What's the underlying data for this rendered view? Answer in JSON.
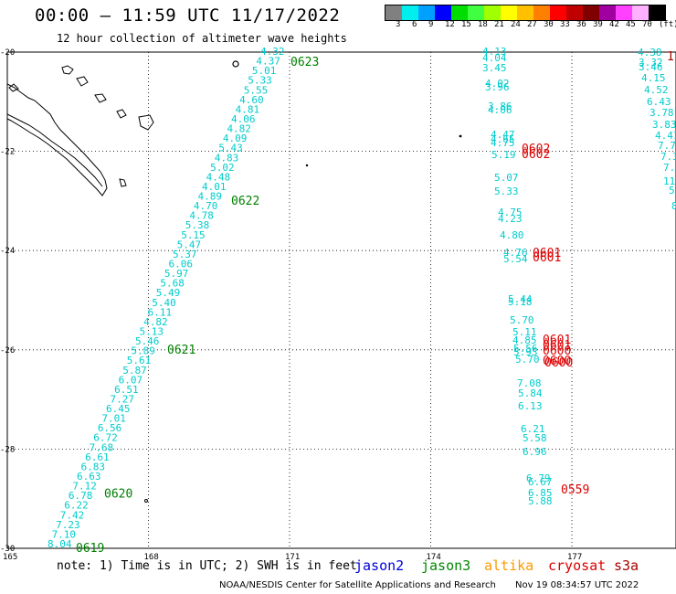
{
  "header": {
    "title": "00:00 — 11:59 UTC 11/17/2022",
    "subtitle": "12 hour collection of altimeter wave heights"
  },
  "legend": {
    "colors": [
      "#808080",
      "#00eeee",
      "#00a0ff",
      "#0000ff",
      "#00dd00",
      "#40ff40",
      "#a0ff00",
      "#ffff00",
      "#ffc000",
      "#ff8000",
      "#ff0000",
      "#c00000",
      "#800000",
      "#a000a0",
      "#ff40ff",
      "#ffb0ff",
      "#000000"
    ],
    "labels": [
      "3",
      "6",
      "9",
      "12",
      "15",
      "18",
      "21",
      "24",
      "27",
      "30",
      "33",
      "36",
      "39",
      "42",
      "45",
      "70",
      "(ft)"
    ]
  },
  "map": {
    "lon_ticks": [
      "165",
      "168",
      "171",
      "174",
      "177"
    ],
    "lat_ticks": [
      "-20",
      "-22",
      "-24",
      "-26",
      "-28",
      "-30"
    ],
    "lon_range": [
      165,
      178.5
    ],
    "lat_range": [
      -30,
      -20
    ],
    "colors": {
      "swh": "#00cccc",
      "time_jason3": "#008000",
      "time_cryosat": "#dd0000"
    }
  },
  "track1": {
    "swh": [
      "4.32",
      "4.37",
      "5.01",
      "5.33",
      "5.55",
      "4.60",
      "4.81",
      "4.06",
      "4.82",
      "4.09",
      "5.43",
      "4.83",
      "5.02",
      "4.48",
      "4.01",
      "4.89",
      "4.70",
      "4.78",
      "5.38",
      "5.15",
      "5.47",
      "5.37",
      "6.06",
      "5.97",
      "5.68",
      "5.49",
      "5.40",
      "6.11",
      "4.82",
      "5.13",
      "5.46",
      "5.89",
      "5.61",
      "5.87",
      "6.07",
      "6.51",
      "7.27",
      "6.45",
      "7.01",
      "6.56",
      "6.72",
      "7.68",
      "6.61",
      "6.83",
      "6.63",
      "7.12",
      "6.78",
      "6.22",
      "7.42",
      "7.23",
      "7.10",
      "8.04"
    ],
    "times": [
      "0623",
      "0622",
      "0621",
      "0620",
      "0619"
    ]
  },
  "track2": {
    "swh": [
      "4.13",
      "4.04",
      "3.45",
      "4.02",
      "3.96",
      "3.86",
      "4.06",
      "4.47",
      "4.65",
      "4.75",
      "5.19",
      "5.07",
      "5.33",
      "4.75",
      "4.23",
      "4.80",
      "4.76",
      "5.54",
      "5.44",
      "5.18",
      "5.70",
      "5.11",
      "4.85",
      "5.56",
      "5.93",
      "5.70",
      "7.08",
      "5.84",
      "6.13",
      "6.21",
      "5.58",
      "6.96",
      "6.79",
      "6.67",
      "6.85",
      "5.88"
    ],
    "times": [
      "0602",
      "0602",
      "0601",
      "0601",
      "0601",
      "0601",
      "0600",
      "0600",
      "0600",
      "0559"
    ]
  },
  "track3": {
    "swh": [
      "4.38",
      "3.32",
      "3.46",
      "4.15",
      "4.52",
      "6.43",
      "3.78",
      "3.83",
      "4.41",
      "7.79",
      "7.3",
      "7.8",
      "11.",
      "5",
      "8"
    ],
    "time_partial": "1"
  },
  "footer": {
    "note": "note: 1) Time is in UTC; 2) SWH is in feet",
    "satellites": [
      {
        "name": "jason2",
        "color": "#0000dd"
      },
      {
        "name": "jason3",
        "color": "#008800"
      },
      {
        "name": "altika",
        "color": "#ff9900"
      },
      {
        "name": "cryosat",
        "color": "#dd0000"
      },
      {
        "name": "s3a",
        "color": "#aa0000"
      }
    ],
    "credit": "NOAA/NESDIS Center for Satellite Applications and Research",
    "generated": "Nov 19 08:34:57 UTC 2022"
  }
}
